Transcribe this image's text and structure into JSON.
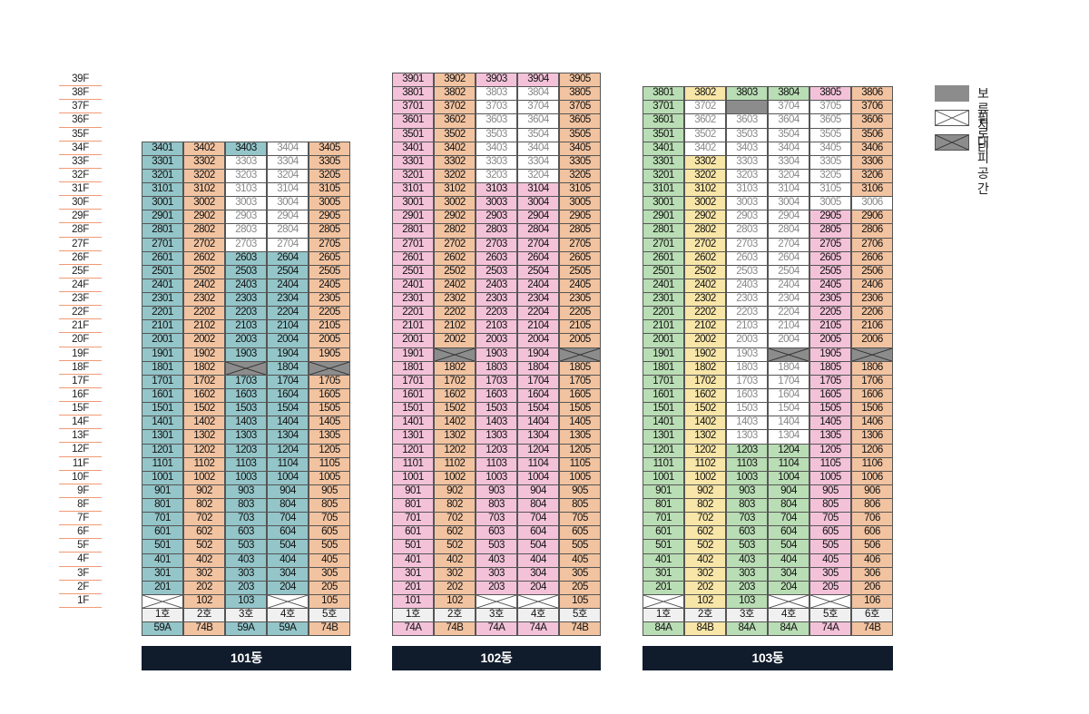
{
  "colors": {
    "b101": "#93c5c9",
    "b102_main": "#f3c2d9",
    "orange": "#f2c3a0",
    "b103_green": "#b9ddb4",
    "b103_yellow": "#f8e6a8",
    "reserved": "#8c8c8c",
    "white": "#ffffff",
    "label_bg": "#101c2c"
  },
  "floor_labels": [
    "39F",
    "38F",
    "37F",
    "36F",
    "35F",
    "34F",
    "33F",
    "32F",
    "31F",
    "30F",
    "29F",
    "28F",
    "27F",
    "26F",
    "25F",
    "24F",
    "23F",
    "22F",
    "21F",
    "20F",
    "19F",
    "18F",
    "17F",
    "16F",
    "15F",
    "14F",
    "13F",
    "12F",
    "11F",
    "10F",
    "9F",
    "8F",
    "7F",
    "6F",
    "5F",
    "4F",
    "3F",
    "2F",
    "1F"
  ],
  "legend": [
    {
      "name": "reserved",
      "label": "보류지"
    },
    {
      "name": "piloti",
      "label": "필로티"
    },
    {
      "name": "refuge",
      "label": "대피공간"
    }
  ],
  "buildings": [
    {
      "name": "101동",
      "top_floor": 34,
      "ho_labels": [
        "1호",
        "2호",
        "3호",
        "4호",
        "5호"
      ],
      "types": [
        "59A",
        "74B",
        "59A",
        "59A",
        "74B"
      ],
      "column_colors": [
        "#93c5c9",
        "#f2c3a0",
        "#93c5c9",
        "#93c5c9",
        "#f2c3a0"
      ],
      "gray": {
        "1": [
          31,
          32,
          33,
          34
        ],
        "2": [
          28,
          29,
          30,
          31,
          32,
          33
        ],
        "3": [
          27,
          28,
          29,
          30,
          31,
          32,
          33,
          34
        ]
      },
      "white": {
        "2": [
          27,
          28,
          29,
          30,
          31,
          32,
          33
        ],
        "3": [
          27,
          28,
          29,
          30,
          31,
          32,
          33,
          34
        ]
      },
      "refuge": {
        "2": [
          18
        ],
        "4": [
          18
        ]
      },
      "piloti": {
        "0": [
          1
        ],
        "3": [
          1
        ]
      },
      "white_extra": {},
      "reserved": {}
    },
    {
      "name": "102동",
      "top_floor": 39,
      "ho_labels": [
        "1호",
        "2호",
        "3호",
        "4호",
        "5호"
      ],
      "types": [
        "74A",
        "74B",
        "74A",
        "74A",
        "74B"
      ],
      "column_colors": [
        "#f3c2d9",
        "#f2c3a0",
        "#f3c2d9",
        "#f3c2d9",
        "#f2c3a0"
      ],
      "gray": {
        "2": [
          32,
          33,
          34,
          35,
          36,
          37,
          38
        ],
        "3": [
          32,
          33,
          34,
          35,
          36,
          37,
          38
        ]
      },
      "white": {
        "2": [
          32,
          33,
          34,
          35,
          36,
          37,
          38
        ],
        "3": [
          32,
          33,
          34,
          35,
          36,
          37,
          38
        ]
      },
      "refuge": {
        "1": [
          19
        ],
        "4": [
          19
        ]
      },
      "piloti": {
        "2": [
          1
        ],
        "3": [
          1
        ]
      },
      "white_extra": {},
      "reserved": {}
    },
    {
      "name": "103동",
      "top_floor": 38,
      "ho_labels": [
        "1호",
        "2호",
        "3호",
        "4호",
        "5호",
        "6호"
      ],
      "types": [
        "84A",
        "84B",
        "84A",
        "84A",
        "74A",
        "74B"
      ],
      "column_colors": [
        "#b9ddb4",
        "#f8e6a8",
        "#b9ddb4",
        "#b9ddb4",
        "#f3c2d9",
        "#f2c3a0"
      ],
      "gray": {
        "1": [
          34,
          35,
          36,
          37
        ],
        "2": [
          13,
          14,
          15,
          16,
          17,
          18,
          19,
          20,
          21,
          22,
          23,
          24,
          25,
          26,
          27,
          28,
          29,
          30,
          31,
          32,
          33,
          34,
          35,
          36,
          37
        ],
        "3": [
          13,
          14,
          15,
          16,
          17,
          18,
          19,
          20,
          21,
          22,
          23,
          24,
          25,
          26,
          27,
          28,
          29,
          30,
          31,
          32,
          33,
          34,
          35,
          36,
          37
        ],
        "4": [
          30,
          31,
          32,
          33,
          34,
          35,
          36,
          37
        ],
        "5": [
          30
        ]
      },
      "white": {
        "1": [
          34,
          35,
          36,
          37
        ],
        "2": [
          13,
          14,
          15,
          16,
          17,
          18,
          19,
          20,
          21,
          22,
          23,
          24,
          25,
          26,
          27,
          28,
          29,
          30,
          31,
          32,
          33,
          34,
          35,
          36,
          37
        ],
        "3": [
          13,
          14,
          15,
          16,
          17,
          18,
          19,
          20,
          21,
          22,
          23,
          24,
          25,
          26,
          27,
          28,
          29,
          30,
          31,
          32,
          33,
          34,
          35,
          36,
          37
        ],
        "4": [
          30,
          31,
          32,
          33,
          34,
          35,
          36,
          37
        ],
        "5": [
          30
        ]
      },
      "refuge": {
        "3": [
          19
        ],
        "5": [
          19
        ]
      },
      "piloti": {
        "0": [
          1
        ],
        "3": [
          1
        ],
        "4": [
          1
        ]
      },
      "white_extra": {},
      "reserved": {
        "2": [
          37
        ]
      }
    }
  ]
}
